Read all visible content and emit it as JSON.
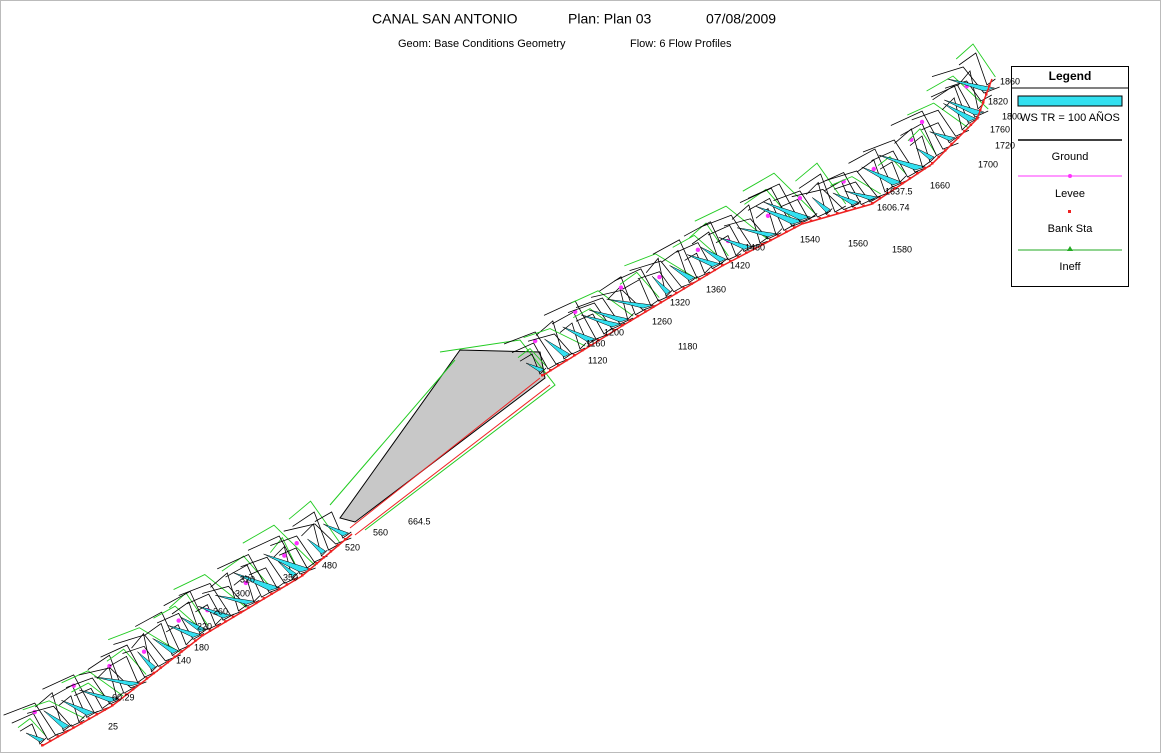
{
  "header": {
    "title_parts": [
      "CANAL SAN ANTONIO",
      "Plan: Plan 03",
      "07/08/2009"
    ],
    "subtitle_parts": [
      "Geom: Base Conditions Geometry",
      "Flow: 6 Flow Profiles"
    ]
  },
  "legend": {
    "title": "Legend",
    "items": [
      "WS TR = 100 AÑOS",
      "Ground",
      "Levee",
      "Bank Sta",
      "Ineff"
    ]
  },
  "stations": [
    "1860",
    "1820",
    "1800",
    "1760",
    "1720",
    "1700",
    "1660",
    "1637.5",
    "1606.74",
    "1580",
    "1560",
    "1540",
    "1480",
    "1420",
    "1360",
    "1320",
    "1260",
    "1200",
    "1180",
    "1160",
    "1120",
    "664.5",
    "560",
    "520",
    "480",
    "350",
    "320",
    "300",
    "260",
    "220",
    "180",
    "140",
    "60.29",
    "25"
  ]
}
